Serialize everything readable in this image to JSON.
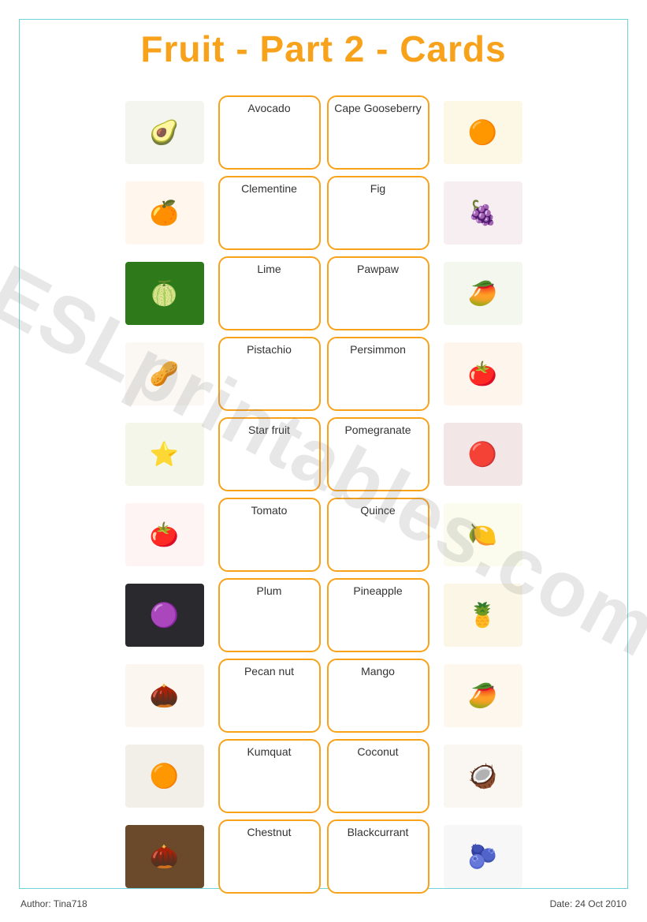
{
  "title": "Fruit - Part 2 - Cards",
  "title_color": "#f8a21b",
  "card_border_color": "#f8a21b",
  "frame_border_color": "#6cd3d8",
  "watermark_text": "ESLprintables.com",
  "footer": {
    "author_label": "Author: Tina718",
    "date_label": "Date: 24 Oct 2010"
  },
  "rows": [
    {
      "left_img": {
        "emoji": "🥑",
        "bg": "#f5f5ef"
      },
      "left_label": "Avocado",
      "right_label": "Cape Gooseberry",
      "right_img": {
        "emoji": "🟠",
        "bg": "#fdf7e6"
      }
    },
    {
      "left_img": {
        "emoji": "🍊",
        "bg": "#fff7ee"
      },
      "left_label": "Clementine",
      "right_label": "Fig",
      "right_img": {
        "emoji": "🍇",
        "bg": "#f7eef2"
      }
    },
    {
      "left_img": {
        "emoji": "🍈",
        "bg": "#2e7a1a"
      },
      "left_label": "Lime",
      "right_label": "Pawpaw",
      "right_img": {
        "emoji": "🥭",
        "bg": "#f4f7ee"
      }
    },
    {
      "left_img": {
        "emoji": "🥜",
        "bg": "#fbf8f3"
      },
      "left_label": "Pistachio",
      "right_label": "Persimmon",
      "right_img": {
        "emoji": "🍅",
        "bg": "#fef5ec"
      }
    },
    {
      "left_img": {
        "emoji": "⭐",
        "bg": "#f3f6e8"
      },
      "left_label": "Star fruit",
      "right_label": "Pomegranate",
      "right_img": {
        "emoji": "🔴",
        "bg": "#f3e6e6"
      }
    },
    {
      "left_img": {
        "emoji": "🍅",
        "bg": "#fef4f4"
      },
      "left_label": "Tomato",
      "right_label": "Quince",
      "right_img": {
        "emoji": "🍋",
        "bg": "#fbfced"
      }
    },
    {
      "left_img": {
        "emoji": "🟣",
        "bg": "#2a2a2e"
      },
      "left_label": "Plum",
      "right_label": "Pineapple",
      "right_img": {
        "emoji": "🍍",
        "bg": "#fbf6e5"
      }
    },
    {
      "left_img": {
        "emoji": "🌰",
        "bg": "#fbf6ef"
      },
      "left_label": "Pecan nut",
      "right_label": "Mango",
      "right_img": {
        "emoji": "🥭",
        "bg": "#fdf7ed"
      }
    },
    {
      "left_img": {
        "emoji": "🟠",
        "bg": "#f2efe8"
      },
      "left_label": "Kumquat",
      "right_label": "Coconut",
      "right_img": {
        "emoji": "🥥",
        "bg": "#faf7f2"
      }
    },
    {
      "left_img": {
        "emoji": "🌰",
        "bg": "#6a4a2a"
      },
      "left_label": "Chestnut",
      "right_label": "Blackcurrant",
      "right_img": {
        "emoji": "🫐",
        "bg": "#f7f7f7"
      }
    }
  ]
}
